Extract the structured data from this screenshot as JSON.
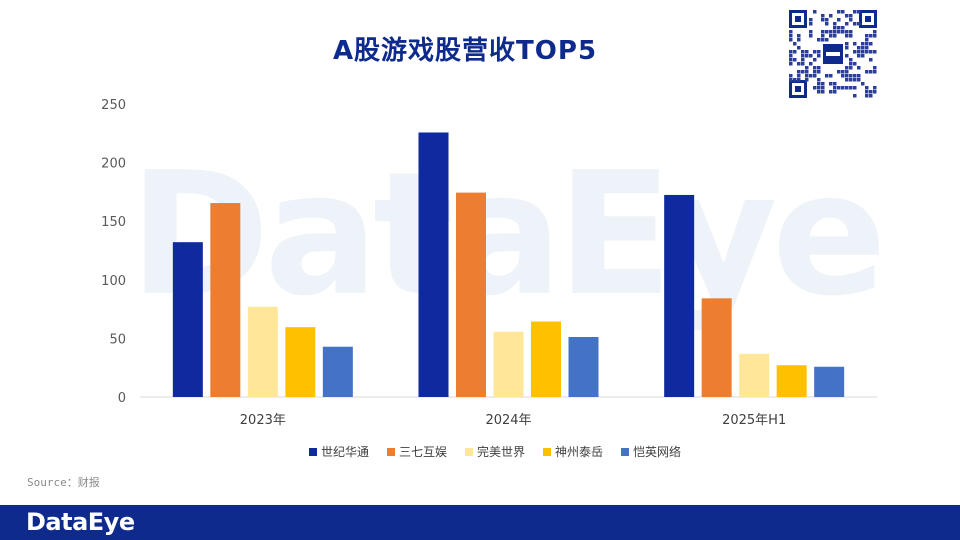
{
  "title": "A股游戏股营收TOP5",
  "watermark": "DataEye",
  "source": "Source：财报",
  "footer": {
    "logo": "DataEye"
  },
  "chart_data": {
    "type": "bar",
    "categories": [
      "2023年",
      "2024年",
      "2025年H1"
    ],
    "series": [
      {
        "name": "世纪华通",
        "color": "#0E2A9E",
        "values": [
          132.1,
          225.7,
          172.4
        ]
      },
      {
        "name": "三七互娱",
        "color": "#ED7D31",
        "values": [
          165.5,
          174.4,
          84.2
        ]
      },
      {
        "name": "完美世界",
        "color": "#FFE699",
        "values": [
          77.0,
          55.7,
          36.9
        ]
      },
      {
        "name": "神州泰岳",
        "color": "#FFC000",
        "values": [
          59.6,
          64.4,
          27.1
        ]
      },
      {
        "name": "恺英网络",
        "color": "#4472C4",
        "values": [
          42.9,
          51.2,
          25.8
        ]
      }
    ],
    "yticks": [
      0,
      50,
      100,
      150,
      200,
      250
    ],
    "ylim": [
      0,
      250
    ],
    "grid": false,
    "legend_position": "bottom"
  }
}
